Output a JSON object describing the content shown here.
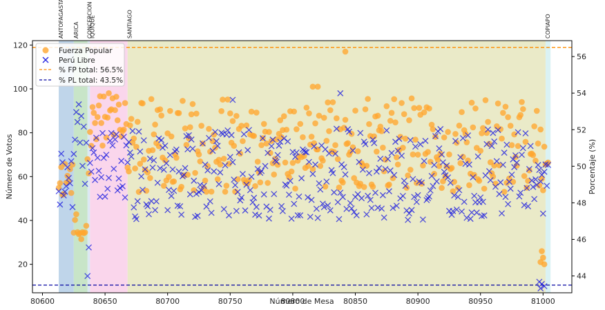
{
  "chart_data": {
    "type": "scatter",
    "xlabel": "Número de Mesa",
    "ylabel": "Número de Votos",
    "y2label": "Porcentaje (%)",
    "xlim": [
      80592,
      81023
    ],
    "ylim": [
      7,
      122
    ],
    "y2lim": [
      43.08,
      56.87
    ],
    "xticks": [
      80600,
      80650,
      80700,
      80750,
      80800,
      80850,
      80900,
      80950,
      81000
    ],
    "yticks": [
      20,
      40,
      60,
      80,
      100,
      120
    ],
    "y2ticks": [
      44,
      46,
      48,
      50,
      52,
      54,
      56
    ],
    "grid": false,
    "legend_position": "top-left",
    "regions": [
      {
        "label": "ANTOFAGASTA",
        "x_start": 80613,
        "x_end": 80625,
        "color": "#a9c7e3"
      },
      {
        "label": "ARICA",
        "x_start": 80625,
        "x_end": 80636,
        "color": "#b5dcb5"
      },
      {
        "label": "CONCEPCION",
        "x_start": 80636,
        "x_end": 80638,
        "color": "#cfe2ee"
      },
      {
        "label": "IQUIQUE",
        "x_start": 80638,
        "x_end": 80668,
        "color": "#f8c8e6"
      },
      {
        "label": "SANTIAGO",
        "x_start": 80668,
        "x_end": 81002,
        "color": "#e3e3b6"
      },
      {
        "label": "COPIAPO",
        "x_start": 81002,
        "x_end": 81006,
        "color": "#cdeef0"
      }
    ],
    "series": [
      {
        "name": "Fuerza Popular",
        "marker": "circle",
        "color": "#ffa630"
      },
      {
        "name": "Perú Libre",
        "marker": "x",
        "color": "#2020e0"
      }
    ],
    "reference_lines": [
      {
        "name": "% FP total: 56.5%",
        "value": 56.5,
        "color": "#ff8c00"
      },
      {
        "name": "% PL total: 43.5%",
        "value": 43.5,
        "color": "#0000a0"
      }
    ],
    "segments": [
      {
        "x_start": 80613,
        "x_end": 80625,
        "fp_lo": 50,
        "fp_hi": 70,
        "pl_lo": 45,
        "pl_hi": 75,
        "seed": 11
      },
      {
        "x_start": 80625,
        "x_end": 80636,
        "fp_lo": 30,
        "fp_hi": 48,
        "pl_lo": 55,
        "pl_hi": 97,
        "seed": 23
      },
      {
        "x_start": 80636,
        "x_end": 80638,
        "fp_lo": 60,
        "fp_hi": 92,
        "pl_lo": 13,
        "pl_hi": 31,
        "seed": 31
      },
      {
        "x_start": 80638,
        "x_end": 80668,
        "fp_lo": 74,
        "fp_hi": 99,
        "pl_lo": 50,
        "pl_hi": 80,
        "seed": 47
      },
      {
        "x_start": 80668,
        "x_end": 81002,
        "fp_lo": 53,
        "fp_hi": 96,
        "pl_lo": 40,
        "pl_hi": 82,
        "seed": 59
      },
      {
        "x_start": 81002,
        "x_end": 81005,
        "fp_lo": 65,
        "fp_hi": 67,
        "pl_lo": 49,
        "pl_hi": 72,
        "seed": 71
      }
    ],
    "notable_points": [
      {
        "series": "Fuerza Popular",
        "x": 80842,
        "y": 117
      },
      {
        "series": "Fuerza Popular",
        "x": 80816,
        "y": 101
      },
      {
        "series": "Fuerza Popular",
        "x": 80820,
        "y": 101
      },
      {
        "series": "Perú Libre",
        "x": 80838,
        "y": 98
      },
      {
        "series": "Perú Libre",
        "x": 80752,
        "y": 95
      },
      {
        "series": "Fuerza Popular",
        "x": 80999,
        "y": 26
      },
      {
        "series": "Fuerza Popular",
        "x": 81000,
        "y": 23
      },
      {
        "series": "Fuerza Popular",
        "x": 80998,
        "y": 21
      },
      {
        "series": "Fuerza Popular",
        "x": 81001,
        "y": 20
      },
      {
        "series": "Perú Libre",
        "x": 80997,
        "y": 12
      },
      {
        "series": "Perú Libre",
        "x": 80999,
        "y": 11
      },
      {
        "series": "Perú Libre",
        "x": 81001,
        "y": 10
      },
      {
        "series": "Perú Libre",
        "x": 80998,
        "y": 9
      }
    ]
  }
}
